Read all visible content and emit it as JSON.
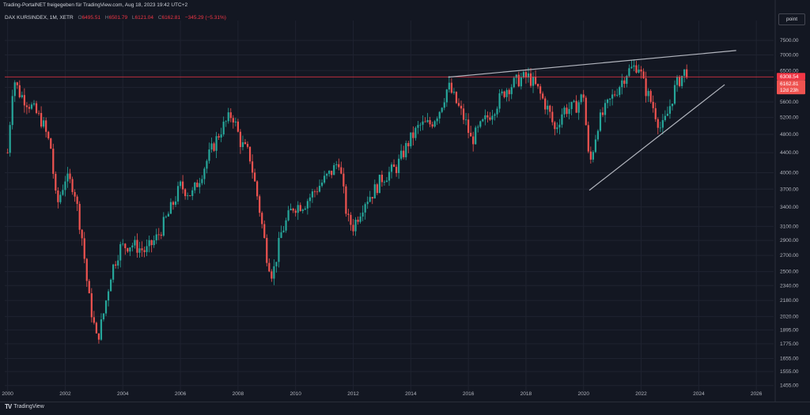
{
  "header": {
    "attribution": "Trading-PortalNET freigegeben für TradingView.com, Aug 18, 2023 19:42 UTC+2"
  },
  "legend": {
    "symbol": "DAX KURSINDEX, 1M, XETR",
    "open_label": "O",
    "open_value": "6495.51",
    "high_label": "H",
    "high_value": "6501.79",
    "low_label": "L",
    "low_value": "6121.04",
    "close_label": "C",
    "close_value": "6162.81",
    "change": "−345.29 (−5.31%)"
  },
  "scale_button": {
    "label": "point"
  },
  "price_badges": {
    "level_value": "6308.54",
    "last_value": "6162.81",
    "countdown": "12d 23h"
  },
  "footer": {
    "brand": "TradingView"
  },
  "colors": {
    "background": "#131722",
    "up": "#26a69a",
    "down": "#ef5350",
    "level_line": "#f23645",
    "trendline": "#b2b5be",
    "grid": "#1f2330"
  },
  "chart_data": {
    "type": "candlestick",
    "title": "",
    "xlabel": "",
    "ylabel": "",
    "y_scale": "log",
    "ylim": [
      1400,
      8000
    ],
    "xlim": [
      1999.9,
      2026.6
    ],
    "grid": true,
    "x_ticks": [
      "2000",
      "2002",
      "2004",
      "2006",
      "2008",
      "2010",
      "2012",
      "2014",
      "2016",
      "2018",
      "2020",
      "2022",
      "2024",
      "2026"
    ],
    "y_ticks": [
      "7500.00",
      "7000.00",
      "6500.00",
      "6000.00",
      "5600.00",
      "5200.00",
      "4800.00",
      "4400.00",
      "4000.00",
      "3700.00",
      "3400.00",
      "3100.00",
      "2900.00",
      "2700.00",
      "2500.00",
      "2340.00",
      "2180.00",
      "2020.00",
      "1895.00",
      "1775.00",
      "1655.00",
      "1555.00",
      "1455.00"
    ],
    "close_path": [
      [
        2000.0,
        4400
      ],
      [
        2000.2,
        6300
      ],
      [
        2000.4,
        5850
      ],
      [
        2000.8,
        5500
      ],
      [
        2001.2,
        5100
      ],
      [
        2001.5,
        4500
      ],
      [
        2001.7,
        3400
      ],
      [
        2002.0,
        3900
      ],
      [
        2002.3,
        3750
      ],
      [
        2002.6,
        2900
      ],
      [
        2002.8,
        2250
      ],
      [
        2003.1,
        1800
      ],
      [
        2003.3,
        2000
      ],
      [
        2003.6,
        2500
      ],
      [
        2003.9,
        2800
      ],
      [
        2004.3,
        2850
      ],
      [
        2004.8,
        2750
      ],
      [
        2005.2,
        2950
      ],
      [
        2005.6,
        3300
      ],
      [
        2006.0,
        3750
      ],
      [
        2006.4,
        3600
      ],
      [
        2006.7,
        3950
      ],
      [
        2007.0,
        4350
      ],
      [
        2007.4,
        4900
      ],
      [
        2007.8,
        5300
      ],
      [
        2008.1,
        4600
      ],
      [
        2008.4,
        4350
      ],
      [
        2008.7,
        3500
      ],
      [
        2009.0,
        2700
      ],
      [
        2009.2,
        2450
      ],
      [
        2009.5,
        3000
      ],
      [
        2009.9,
        3400
      ],
      [
        2010.3,
        3450
      ],
      [
        2010.8,
        3750
      ],
      [
        2011.3,
        4050
      ],
      [
        2011.5,
        4250
      ],
      [
        2011.8,
        3200
      ],
      [
        2012.0,
        3100
      ],
      [
        2012.4,
        3500
      ],
      [
        2012.7,
        3650
      ],
      [
        2013.0,
        3900
      ],
      [
        2013.5,
        4100
      ],
      [
        2013.9,
        4600
      ],
      [
        2014.3,
        5000
      ],
      [
        2014.7,
        5050
      ],
      [
        2015.0,
        5400
      ],
      [
        2015.3,
        6050
      ],
      [
        2015.6,
        5550
      ],
      [
        2015.9,
        5100
      ],
      [
        2016.1,
        4650
      ],
      [
        2016.5,
        5050
      ],
      [
        2016.9,
        5450
      ],
      [
        2017.3,
        5950
      ],
      [
        2017.8,
        6250
      ],
      [
        2018.1,
        6300
      ],
      [
        2018.4,
        5950
      ],
      [
        2018.8,
        5350
      ],
      [
        2019.0,
        4900
      ],
      [
        2019.3,
        5400
      ],
      [
        2019.7,
        5450
      ],
      [
        2020.0,
        5800
      ],
      [
        2020.2,
        4100
      ],
      [
        2020.5,
        5050
      ],
      [
        2020.9,
        5600
      ],
      [
        2021.2,
        6000
      ],
      [
        2021.5,
        6450
      ],
      [
        2021.9,
        6700
      ],
      [
        2022.1,
        6050
      ],
      [
        2022.4,
        5500
      ],
      [
        2022.7,
        4900
      ],
      [
        2022.9,
        5250
      ],
      [
        2023.2,
        6050
      ],
      [
        2023.5,
        6450
      ],
      [
        2023.6,
        6500
      ],
      [
        2023.63,
        6162.81
      ]
    ],
    "resistance_line": [
      [
        2015.3,
        6300
      ],
      [
        2025.3,
        7150
      ]
    ],
    "support_line": [
      [
        2020.2,
        3680
      ],
      [
        2024.9,
        6080
      ]
    ],
    "horizontal_level": 6308.54,
    "last_price": 6162.81
  }
}
